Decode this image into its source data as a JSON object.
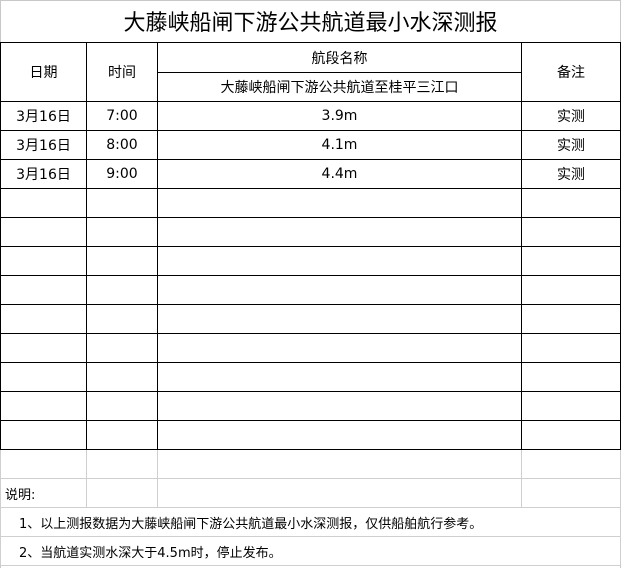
{
  "title": "大藤峡船闸下游公共航道最小水深测报",
  "headers": {
    "date": "日期",
    "time": "时间",
    "section_label": "航段名称",
    "section_name": "大藤峡船闸下游公共航道至桂平三江口",
    "remark": "备注"
  },
  "rows": [
    {
      "date": "3月16日",
      "time": "7:00",
      "depth": "3.9m",
      "remark": "实测"
    },
    {
      "date": "3月16日",
      "time": "8:00",
      "depth": "4.1m",
      "remark": "实测"
    },
    {
      "date": "3月16日",
      "time": "9:00",
      "depth": "4.4m",
      "remark": "实测"
    }
  ],
  "notes": {
    "label": "说明:",
    "items": [
      "1、以上测报数据为大藤峡船闸下游公共航道最小水深测报，仅供船舶航行参考。",
      "2、当航道实测水深大于4.5m时，停止发布。"
    ]
  }
}
